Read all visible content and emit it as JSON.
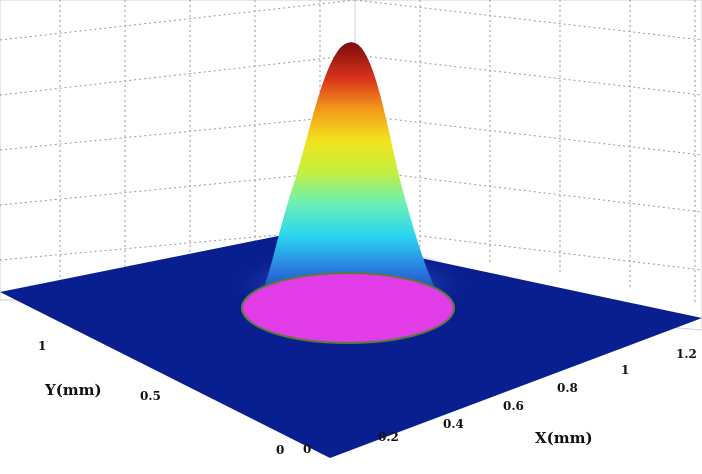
{
  "chart_data": {
    "type": "surface",
    "description_type": "3d-surface",
    "xlabel": "X(mm)",
    "ylabel": "Y(mm)",
    "x_ticks": [
      "0",
      "0.2",
      "0.4",
      "0.6",
      "0.8",
      "1",
      "1.2"
    ],
    "y_ticks": [
      "0",
      "0.5",
      "1"
    ],
    "xlim": [
      0,
      1.2
    ],
    "ylim": [
      0,
      1.2
    ],
    "surface": "gaussian",
    "peak_center": {
      "x": 0.6,
      "y": 0.6
    },
    "colormap": "jet",
    "grid": true,
    "colors": {
      "base": "#0a1f8f",
      "highlight_ellipse": "#e23be8",
      "ellipse_stroke": "#5a7a3a"
    }
  }
}
